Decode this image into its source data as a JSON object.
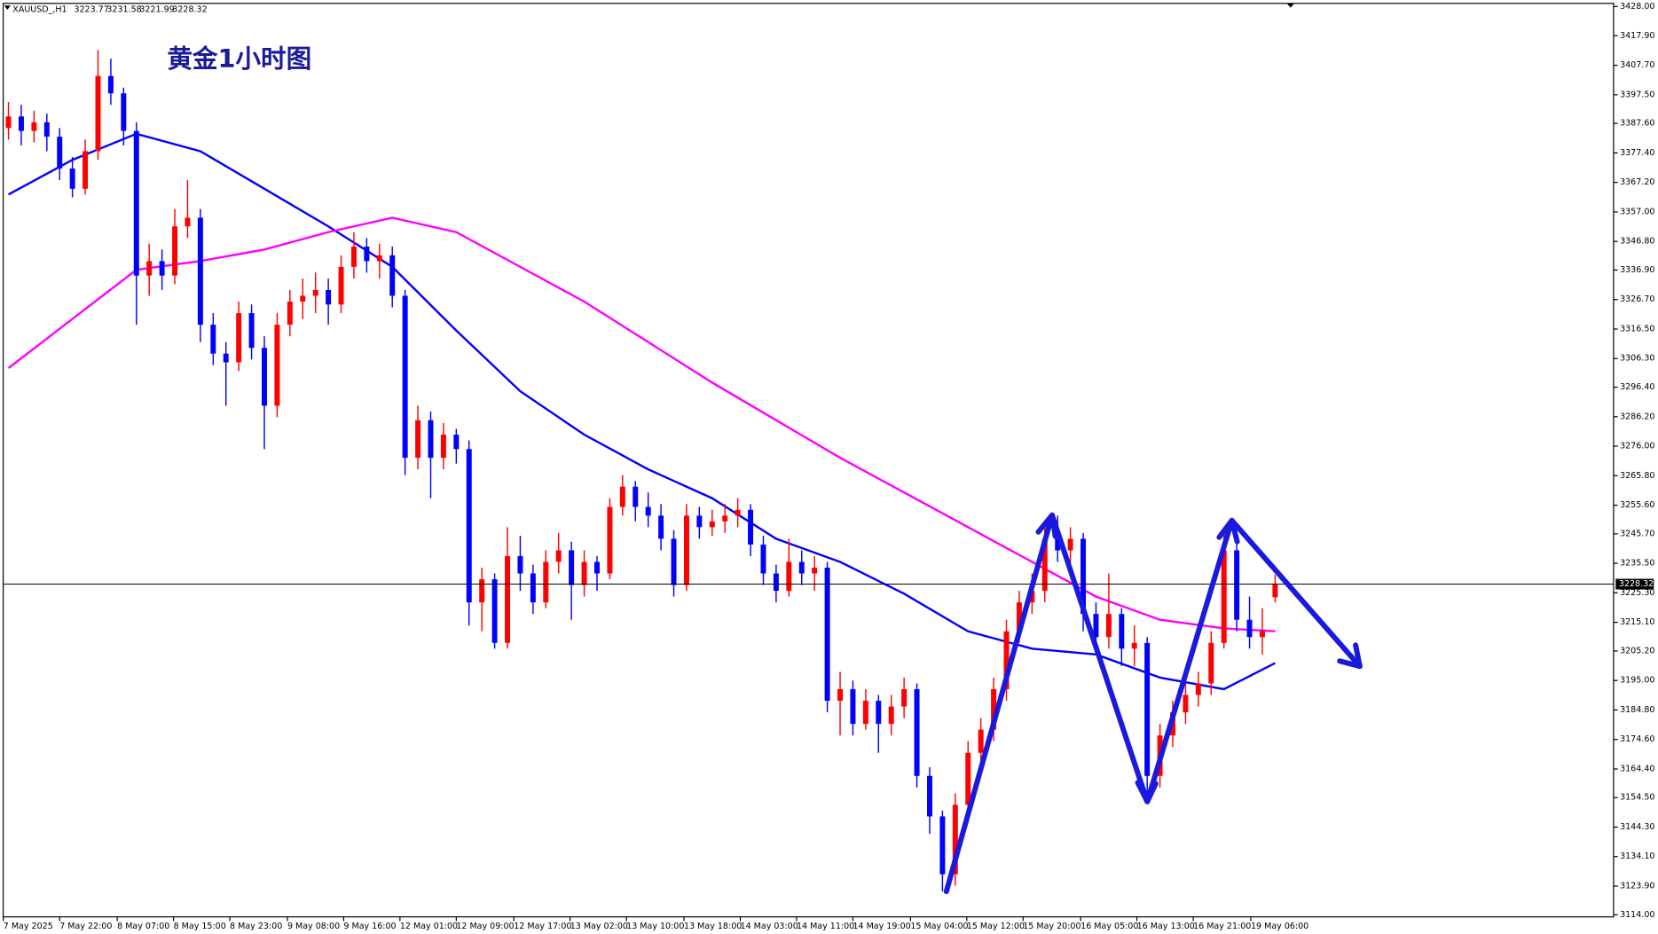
{
  "chart_data": {
    "type": "candlestick",
    "title": "黄金1小时图",
    "symbol": "XAUUSD_,H1",
    "up_color": "#ff0000",
    "down_color": "#0000ff",
    "candles": [
      [
        3386,
        3395,
        3382,
        3390
      ],
      [
        3390,
        3394,
        3380,
        3385
      ],
      [
        3385,
        3392,
        3381,
        3388
      ],
      [
        3388,
        3391,
        3378,
        3383
      ],
      [
        3383,
        3386,
        3368,
        3372
      ],
      [
        3372,
        3376,
        3362,
        3365
      ],
      [
        3365,
        3382,
        3363,
        3378
      ],
      [
        3378,
        3413,
        3375,
        3404
      ],
      [
        3404,
        3410,
        3394,
        3398
      ],
      [
        3398,
        3400,
        3380,
        3385
      ],
      [
        3385,
        3388,
        3318,
        3335
      ],
      [
        3335,
        3346,
        3328,
        3340
      ],
      [
        3340,
        3344,
        3330,
        3335
      ],
      [
        3335,
        3358,
        3332,
        3352
      ],
      [
        3352,
        3368,
        3348,
        3355
      ],
      [
        3355,
        3358,
        3312,
        3318
      ],
      [
        3318,
        3322,
        3304,
        3308
      ],
      [
        3308,
        3312,
        3290,
        3305
      ],
      [
        3305,
        3326,
        3302,
        3322
      ],
      [
        3322,
        3325,
        3306,
        3310
      ],
      [
        3310,
        3314,
        3275,
        3290
      ],
      [
        3290,
        3322,
        3286,
        3318
      ],
      [
        3318,
        3330,
        3314,
        3326
      ],
      [
        3326,
        3334,
        3320,
        3328
      ],
      [
        3328,
        3336,
        3322,
        3330
      ],
      [
        3330,
        3334,
        3318,
        3325
      ],
      [
        3325,
        3342,
        3322,
        3338
      ],
      [
        3338,
        3350,
        3334,
        3345
      ],
      [
        3345,
        3348,
        3336,
        3340
      ],
      [
        3340,
        3346,
        3334,
        3342
      ],
      [
        3342,
        3345,
        3324,
        3328
      ],
      [
        3328,
        3330,
        3266,
        3272
      ],
      [
        3272,
        3290,
        3268,
        3285
      ],
      [
        3285,
        3288,
        3258,
        3272
      ],
      [
        3272,
        3284,
        3268,
        3280
      ],
      [
        3280,
        3282,
        3270,
        3275
      ],
      [
        3275,
        3278,
        3214,
        3222
      ],
      [
        3222,
        3234,
        3212,
        3230
      ],
      [
        3230,
        3232,
        3206,
        3208
      ],
      [
        3208,
        3248,
        3206,
        3238
      ],
      [
        3238,
        3245,
        3226,
        3232
      ],
      [
        3232,
        3235,
        3218,
        3222
      ],
      [
        3222,
        3240,
        3220,
        3236
      ],
      [
        3236,
        3246,
        3232,
        3240
      ],
      [
        3240,
        3243,
        3216,
        3228
      ],
      [
        3228,
        3240,
        3224,
        3236
      ],
      [
        3236,
        3238,
        3226,
        3232
      ],
      [
        3232,
        3258,
        3230,
        3255
      ],
      [
        3255,
        3266,
        3252,
        3262
      ],
      [
        3262,
        3264,
        3250,
        3255
      ],
      [
        3255,
        3260,
        3248,
        3252
      ],
      [
        3252,
        3256,
        3240,
        3244
      ],
      [
        3244,
        3247,
        3224,
        3228
      ],
      [
        3228,
        3256,
        3226,
        3252
      ],
      [
        3252,
        3255,
        3244,
        3248
      ],
      [
        3248,
        3254,
        3245,
        3250
      ],
      [
        3250,
        3256,
        3246,
        3252
      ],
      [
        3252,
        3258,
        3248,
        3254
      ],
      [
        3254,
        3256,
        3238,
        3242
      ],
      [
        3242,
        3245,
        3228,
        3232
      ],
      [
        3232,
        3235,
        3222,
        3226
      ],
      [
        3226,
        3244,
        3224,
        3236
      ],
      [
        3236,
        3240,
        3228,
        3232
      ],
      [
        3232,
        3238,
        3226,
        3234
      ],
      [
        3234,
        3236,
        3184,
        3188
      ],
      [
        3188,
        3198,
        3176,
        3192
      ],
      [
        3192,
        3195,
        3176,
        3180
      ],
      [
        3180,
        3192,
        3178,
        3188
      ],
      [
        3188,
        3190,
        3170,
        3180
      ],
      [
        3180,
        3190,
        3176,
        3186
      ],
      [
        3186,
        3196,
        3182,
        3192
      ],
      [
        3192,
        3194,
        3158,
        3162
      ],
      [
        3162,
        3165,
        3142,
        3148
      ],
      [
        3148,
        3150,
        3122,
        3128
      ],
      [
        3128,
        3156,
        3124,
        3152
      ],
      [
        3152,
        3174,
        3148,
        3170
      ],
      [
        3170,
        3182,
        3166,
        3178
      ],
      [
        3178,
        3196,
        3174,
        3192
      ],
      [
        3192,
        3216,
        3188,
        3212
      ],
      [
        3212,
        3226,
        3208,
        3222
      ],
      [
        3222,
        3232,
        3218,
        3226
      ],
      [
        3226,
        3250,
        3222,
        3244
      ],
      [
        3244,
        3252,
        3236,
        3240
      ],
      [
        3240,
        3248,
        3234,
        3244
      ],
      [
        3244,
        3246,
        3212,
        3218
      ],
      [
        3218,
        3222,
        3204,
        3210
      ],
      [
        3210,
        3232,
        3206,
        3218
      ],
      [
        3218,
        3220,
        3200,
        3206
      ],
      [
        3206,
        3214,
        3200,
        3208
      ],
      [
        3208,
        3210,
        3156,
        3162
      ],
      [
        3162,
        3180,
        3158,
        3176
      ],
      [
        3176,
        3188,
        3172,
        3184
      ],
      [
        3184,
        3194,
        3180,
        3190
      ],
      [
        3190,
        3198,
        3186,
        3194
      ],
      [
        3194,
        3212,
        3190,
        3208
      ],
      [
        3208,
        3246,
        3206,
        3240
      ],
      [
        3240,
        3244,
        3212,
        3216
      ],
      [
        3216,
        3224,
        3206,
        3210
      ],
      [
        3210,
        3220,
        3204,
        3212
      ],
      [
        3223.77,
        3231.58,
        3221.99,
        3228.32
      ]
    ],
    "lines": [
      {
        "color": "#0000ff",
        "x": [
          0,
          5,
          10,
          15,
          20,
          25,
          30,
          35,
          40,
          45,
          50,
          55,
          60,
          65,
          70,
          75,
          80,
          85,
          90,
          95,
          99
        ],
        "values": [
          3363,
          3375,
          3384,
          3378,
          3365,
          3352,
          3338,
          3316,
          3295,
          3280,
          3268,
          3258,
          3244,
          3236,
          3225,
          3212,
          3206,
          3204,
          3196,
          3192,
          3201
        ]
      },
      {
        "color": "#ff00ff",
        "x": [
          0,
          5,
          10,
          15,
          20,
          25,
          30,
          35,
          40,
          45,
          50,
          55,
          60,
          65,
          70,
          75,
          80,
          85,
          90,
          95,
          99
        ],
        "values": [
          3303,
          3320,
          3337,
          3340,
          3344,
          3350,
          3355,
          3350,
          3338,
          3326,
          3312,
          3298,
          3285,
          3272,
          3260,
          3248,
          3236,
          3224,
          3216,
          3213,
          3212
        ]
      }
    ],
    "ylim": [
      3114,
      3428
    ],
    "yticks": [
      {
        "value": 3428,
        "label": "3428.00"
      },
      {
        "value": 3417.9,
        "label": "3417.90"
      },
      {
        "value": 3407.7,
        "label": "3407.70"
      },
      {
        "value": 3397.5,
        "label": "3397.50"
      },
      {
        "value": 3387.6,
        "label": "3387.60"
      },
      {
        "value": 3377.4,
        "label": "3377.40"
      },
      {
        "value": 3367.2,
        "label": "3367.20"
      },
      {
        "value": 3357,
        "label": "3357.00"
      },
      {
        "value": 3346.8,
        "label": "3346.80"
      },
      {
        "value": 3336.9,
        "label": "3336.90"
      },
      {
        "value": 3326.7,
        "label": "3326.70"
      },
      {
        "value": 3316.5,
        "label": "3316.50"
      },
      {
        "value": 3306.3,
        "label": "3306.30"
      },
      {
        "value": 3296.4,
        "label": "3296.40"
      },
      {
        "value": 3286.2,
        "label": "3286.20"
      },
      {
        "value": 3276,
        "label": "3276.00"
      },
      {
        "value": 3265.8,
        "label": "3265.80"
      },
      {
        "value": 3255.6,
        "label": "3255.60"
      },
      {
        "value": 3245.7,
        "label": "3245.70"
      },
      {
        "value": 3235.5,
        "label": "3235.50"
      },
      {
        "value": 3225.3,
        "label": "3225.30"
      },
      {
        "value": 3215.1,
        "label": "3215.10"
      },
      {
        "value": 3205.2,
        "label": "3205.20"
      },
      {
        "value": 3195,
        "label": "3195.00"
      },
      {
        "value": 3184.8,
        "label": "3184.80"
      },
      {
        "value": 3174.6,
        "label": "3174.60"
      },
      {
        "value": 3164.4,
        "label": "3164.40"
      },
      {
        "value": 3154.5,
        "label": "3154.50"
      },
      {
        "value": 3144.3,
        "label": "3144.30"
      },
      {
        "value": 3134.1,
        "label": "3134.10"
      },
      {
        "value": 3123.9,
        "label": "3123.90"
      },
      {
        "value": 3114,
        "label": "3114.00"
      }
    ],
    "xticks": [
      {
        "value": -0.4,
        "label": "7 May 2025"
      },
      {
        "value": 4.0,
        "label": "7 May 22:00"
      },
      {
        "value": 8.5,
        "label": "8 May 07:00"
      },
      {
        "value": 12.9,
        "label": "8 May 15:00"
      },
      {
        "value": 17.3,
        "label": "8 May 23:00"
      },
      {
        "value": 21.8,
        "label": "9 May 08:00"
      },
      {
        "value": 26.2,
        "label": "9 May 16:00"
      },
      {
        "value": 30.6,
        "label": "12 May 01:00"
      },
      {
        "value": 35.0,
        "label": "12 May 09:00"
      },
      {
        "value": 39.5,
        "label": "12 May 17:00"
      },
      {
        "value": 43.9,
        "label": "13 May 02:00"
      },
      {
        "value": 48.3,
        "label": "13 May 10:00"
      },
      {
        "value": 52.8,
        "label": "13 May 18:00"
      },
      {
        "value": 57.2,
        "label": "14 May 03:00"
      },
      {
        "value": 61.6,
        "label": "14 May 11:00"
      },
      {
        "value": 66.0,
        "label": "14 May 19:00"
      },
      {
        "value": 70.5,
        "label": "15 May 04:00"
      },
      {
        "value": 74.9,
        "label": "15 May 12:00"
      },
      {
        "value": 79.3,
        "label": "15 May 20:00"
      },
      {
        "value": 83.8,
        "label": "16 May 05:00"
      },
      {
        "value": 88.2,
        "label": "16 May 13:00"
      },
      {
        "value": 92.6,
        "label": "16 May 21:00"
      },
      {
        "value": 97.1,
        "label": "19 May 06:00"
      }
    ]
  }
}
